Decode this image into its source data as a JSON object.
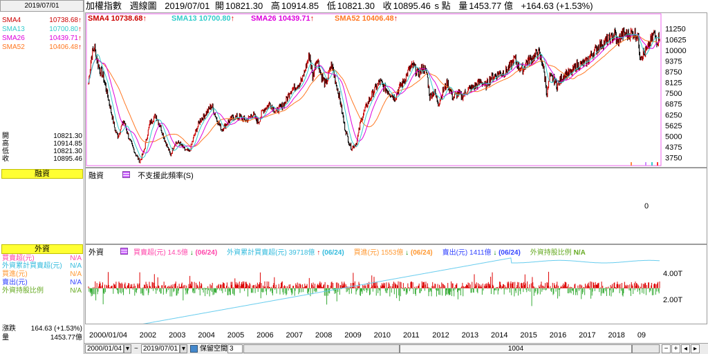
{
  "date_box": "2019/07/01",
  "header": {
    "title": "加權指數",
    "period": "週線圖",
    "date": "2019/07/01",
    "open_label": "開",
    "open": "10821.30",
    "high_label": "高",
    "high": "10914.85",
    "low_label": "低",
    "low": "10821.30",
    "close_label": "收",
    "close": "10895.46",
    "s_label": "s 點",
    "vol_label": "量",
    "vol": "1453.77 億",
    "change": "+164.63 (+1.53%)"
  },
  "sma": [
    {
      "name": "SMA4",
      "value": "10738.68",
      "color": "#cc0000"
    },
    {
      "name": "SMA13",
      "value": "10700.80",
      "color": "#33cccc"
    },
    {
      "name": "SMA26",
      "value": "10439.71",
      "color": "#dd00dd"
    },
    {
      "name": "SMA52",
      "value": "10406.48",
      "color": "#ff7722"
    }
  ],
  "up_arrow": "↑",
  "ohlc": [
    {
      "label": "開",
      "value": "10821.30"
    },
    {
      "label": "高",
      "value": "10914.85"
    },
    {
      "label": "低",
      "value": "10821.30"
    },
    {
      "label": "收",
      "value": "10895.46"
    }
  ],
  "margin": {
    "title": "融資",
    "label": "融資",
    "note": "不支援此頻率(S)",
    "axis": "0"
  },
  "foreign": {
    "title": "外資",
    "label": "外資",
    "rows": [
      {
        "label": "買賣超(元)",
        "value": "N/A",
        "color": "#ff44aa"
      },
      {
        "label": "外資累計買賣超(元)",
        "value": "N/A",
        "color": "#33bbdd"
      },
      {
        "label": "買進(元)",
        "value": "N/A",
        "color": "#ff9933"
      },
      {
        "label": "賣出(元)",
        "value": "N/A",
        "color": "#3344ff"
      },
      {
        "label": "外資持股比例",
        "value": "N/A",
        "color": "#66aa22"
      }
    ],
    "legend": [
      {
        "text": "買賣超(元) 14.5億",
        "arrow": "↓",
        "date": "(06/24)",
        "color": "#ff44aa"
      },
      {
        "text": "外資累計買賣超(元) 39718億",
        "arrow": "↑",
        "date": "(06/24)",
        "color": "#33bbdd"
      },
      {
        "text": "買進(元) 1553億",
        "arrow": "↓",
        "date": "(06/24)",
        "color": "#ff9933"
      },
      {
        "text": "賣出(元) 1411億",
        "arrow": "↓",
        "date": "(06/24)",
        "color": "#3344ff"
      },
      {
        "text": "外資持股比例",
        "arrow": "",
        "date": "N/A",
        "color": "#66aa22"
      }
    ],
    "axis": [
      "4.00T",
      "2.00T"
    ]
  },
  "bottom_left": [
    {
      "label": "漲跌",
      "value": "164.63 (+1.53%)"
    },
    {
      "label": "量",
      "value": "1453.77億"
    }
  ],
  "bottombar": {
    "from": "2000/01/04",
    "sep": "~",
    "to": "2019/07/01",
    "keep_space_label": "保留空間",
    "keep_space": "3",
    "count": "1004"
  },
  "chart_data": {
    "type": "line",
    "title": "加權指數 週線圖",
    "years": [
      "2000/01/04",
      "2002",
      "2003",
      "2004",
      "2005",
      "2006",
      "2007",
      "2008",
      "09",
      "2009",
      "2010",
      "2011",
      "2012",
      "2013",
      "2014",
      "2015",
      "2016",
      "2017",
      "2018"
    ],
    "x_axis_labels": [
      "2000/01/04",
      "2002",
      "2003",
      "2004",
      "2005",
      "2006",
      "2007",
      "2008",
      "2009",
      "2010",
      "2011",
      "2012",
      "2013",
      "2014",
      "2015",
      "2016",
      "2017",
      "2018",
      "09"
    ],
    "yticks": [
      11250,
      10625,
      10000,
      9375,
      8750,
      8125,
      7500,
      6875,
      6250,
      5625,
      5000,
      4375,
      3750
    ],
    "ylim": [
      3250,
      11600
    ],
    "xlim": [
      2000.0,
      2019.5
    ],
    "price": [
      [
        2000.0,
        8100
      ],
      [
        2000.1,
        9700
      ],
      [
        2000.2,
        10200
      ],
      [
        2000.35,
        9000
      ],
      [
        2000.5,
        8500
      ],
      [
        2000.7,
        7000
      ],
      [
        2000.9,
        5400
      ],
      [
        2001.0,
        5000
      ],
      [
        2001.2,
        5900
      ],
      [
        2001.4,
        4800
      ],
      [
        2001.6,
        4000
      ],
      [
        2001.75,
        3500
      ],
      [
        2001.9,
        4200
      ],
      [
        2002.1,
        5800
      ],
      [
        2002.3,
        6200
      ],
      [
        2002.45,
        5600
      ],
      [
        2002.6,
        4800
      ],
      [
        2002.8,
        3900
      ],
      [
        2002.95,
        4600
      ],
      [
        2003.1,
        4600
      ],
      [
        2003.3,
        4200
      ],
      [
        2003.45,
        4100
      ],
      [
        2003.6,
        5000
      ],
      [
        2003.8,
        5900
      ],
      [
        2004.0,
        6300
      ],
      [
        2004.2,
        6800
      ],
      [
        2004.4,
        5900
      ],
      [
        2004.55,
        5400
      ],
      [
        2004.75,
        5800
      ],
      [
        2004.95,
        6100
      ],
      [
        2005.2,
        6100
      ],
      [
        2005.4,
        5900
      ],
      [
        2005.6,
        6300
      ],
      [
        2005.8,
        5800
      ],
      [
        2005.95,
        6500
      ],
      [
        2006.2,
        6900
      ],
      [
        2006.4,
        6400
      ],
      [
        2006.5,
        6600
      ],
      [
        2006.7,
        6900
      ],
      [
        2006.9,
        7700
      ],
      [
        2007.1,
        7900
      ],
      [
        2007.3,
        8300
      ],
      [
        2007.55,
        9800
      ],
      [
        2007.65,
        8400
      ],
      [
        2007.8,
        9600
      ],
      [
        2007.95,
        8500
      ],
      [
        2008.1,
        8000
      ],
      [
        2008.3,
        9200
      ],
      [
        2008.45,
        8100
      ],
      [
        2008.6,
        7000
      ],
      [
        2008.75,
        5500
      ],
      [
        2008.9,
        4600
      ],
      [
        2008.98,
        4300
      ],
      [
        2009.15,
        4600
      ],
      [
        2009.3,
        5900
      ],
      [
        2009.5,
        6800
      ],
      [
        2009.7,
        7500
      ],
      [
        2009.95,
        8200
      ],
      [
        2010.1,
        7800
      ],
      [
        2010.3,
        7500
      ],
      [
        2010.45,
        7200
      ],
      [
        2010.6,
        7800
      ],
      [
        2010.8,
        8300
      ],
      [
        2010.95,
        8900
      ],
      [
        2011.1,
        9100
      ],
      [
        2011.25,
        8600
      ],
      [
        2011.4,
        9000
      ],
      [
        2011.55,
        8700
      ],
      [
        2011.65,
        7300
      ],
      [
        2011.8,
        7600
      ],
      [
        2011.95,
        6900
      ],
      [
        2012.1,
        7600
      ],
      [
        2012.25,
        8100
      ],
      [
        2012.45,
        7200
      ],
      [
        2012.6,
        7500
      ],
      [
        2012.75,
        7300
      ],
      [
        2012.95,
        7700
      ],
      [
        2013.2,
        7900
      ],
      [
        2013.4,
        8200
      ],
      [
        2013.55,
        7900
      ],
      [
        2013.75,
        8400
      ],
      [
        2013.95,
        8600
      ],
      [
        2014.2,
        8700
      ],
      [
        2014.4,
        9100
      ],
      [
        2014.55,
        9500
      ],
      [
        2014.7,
        9000
      ],
      [
        2014.85,
        8900
      ],
      [
        2014.95,
        9300
      ],
      [
        2015.2,
        9600
      ],
      [
        2015.35,
        9900
      ],
      [
        2015.5,
        9300
      ],
      [
        2015.6,
        8200
      ],
      [
        2015.65,
        7400
      ],
      [
        2015.75,
        8400
      ],
      [
        2015.9,
        8300
      ],
      [
        2016.0,
        7900
      ],
      [
        2016.15,
        8400
      ],
      [
        2016.3,
        8600
      ],
      [
        2016.5,
        8700
      ],
      [
        2016.65,
        9100
      ],
      [
        2016.85,
        9200
      ],
      [
        2017.0,
        9300
      ],
      [
        2017.2,
        9800
      ],
      [
        2017.45,
        10300
      ],
      [
        2017.65,
        10500
      ],
      [
        2017.85,
        10700
      ],
      [
        2017.98,
        11000
      ],
      [
        2018.05,
        10400
      ],
      [
        2018.2,
        10900
      ],
      [
        2018.4,
        10900
      ],
      [
        2018.6,
        11000
      ],
      [
        2018.75,
        10900
      ],
      [
        2018.83,
        9700
      ],
      [
        2018.95,
        9800
      ],
      [
        2019.1,
        10100
      ],
      [
        2019.3,
        11000
      ],
      [
        2019.42,
        10500
      ],
      [
        2019.5,
        10900
      ]
    ],
    "series": [
      {
        "name": "SMA4",
        "value": 10738.68
      },
      {
        "name": "SMA13",
        "value": 10700.8
      },
      {
        "name": "SMA26",
        "value": 10439.71
      },
      {
        "name": "SMA52",
        "value": 10406.48
      }
    ],
    "foreign_net": {
      "name": "買賣超(元)",
      "ylim": [
        1.6,
        4.6
      ]
    },
    "foreign_cumulative": {
      "name": "外資累計買賣超(元)",
      "start": 1.2,
      "end": 4.2
    }
  }
}
